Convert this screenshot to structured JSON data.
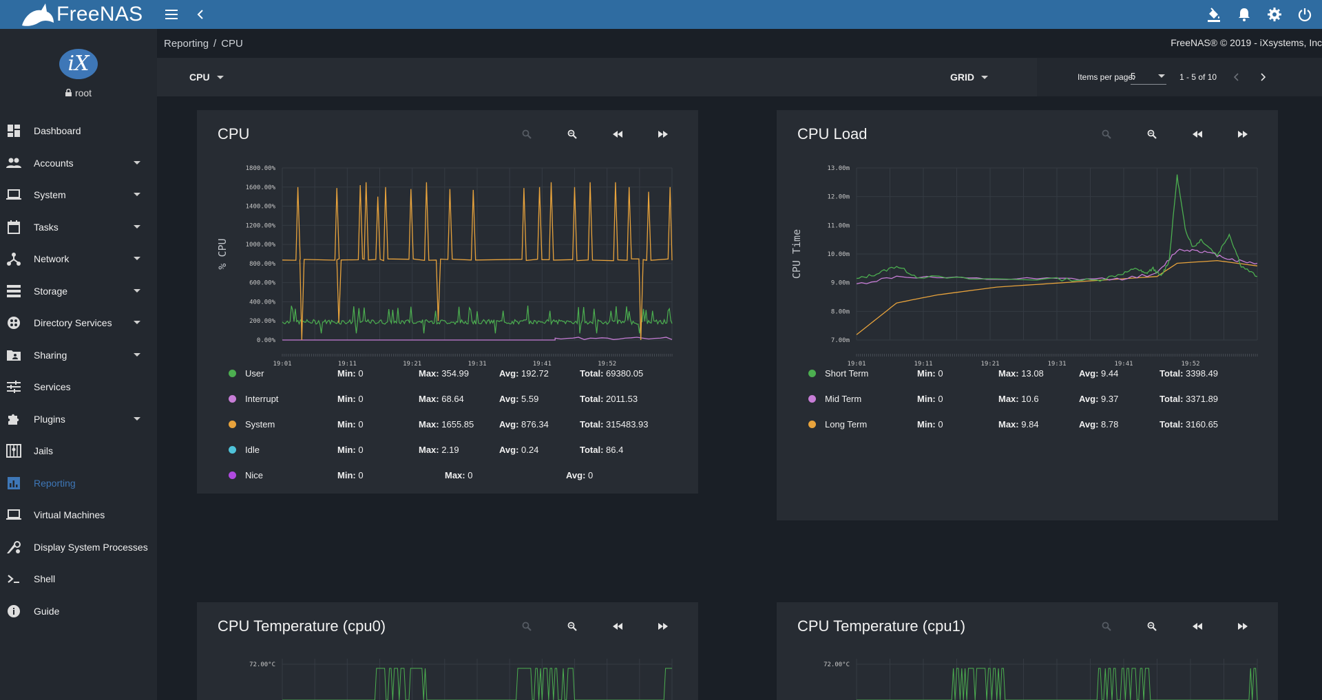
{
  "app": {
    "brand": "FreeNAS"
  },
  "colors": {
    "topbar": "#2f6ca1",
    "accent": "#3e77b7",
    "green": "#4caf50",
    "violet": "#c77dd6",
    "orange": "#e8a33c",
    "cyan": "#4fc3d9",
    "purple": "#b04ae0"
  },
  "topbar": {
    "icons": [
      "menu-icon",
      "chevron-left-icon",
      "paint-bucket-icon",
      "bell-icon",
      "gear-icon",
      "power-icon"
    ]
  },
  "sidebar": {
    "logo_text": "iX",
    "user": "root",
    "items": [
      {
        "label": "Dashboard",
        "icon": "dashboard-icon",
        "caret": false
      },
      {
        "label": "Accounts",
        "icon": "people-icon",
        "caret": true
      },
      {
        "label": "System",
        "icon": "laptop-icon",
        "caret": true
      },
      {
        "label": "Tasks",
        "icon": "calendar-icon",
        "caret": true
      },
      {
        "label": "Network",
        "icon": "network-icon",
        "caret": true
      },
      {
        "label": "Storage",
        "icon": "storage-icon",
        "caret": true
      },
      {
        "label": "Directory Services",
        "icon": "directory-icon",
        "caret": true
      },
      {
        "label": "Sharing",
        "icon": "folder-share-icon",
        "caret": true
      },
      {
        "label": "Services",
        "icon": "tune-icon",
        "caret": false
      },
      {
        "label": "Plugins",
        "icon": "puzzle-icon",
        "caret": true
      },
      {
        "label": "Jails",
        "icon": "jail-icon",
        "caret": false
      },
      {
        "label": "Reporting",
        "icon": "chart-icon",
        "caret": false,
        "active": true
      },
      {
        "label": "Virtual Machines",
        "icon": "laptop-icon",
        "caret": false
      },
      {
        "label": "Display System Processes",
        "icon": "processes-icon",
        "caret": false
      },
      {
        "label": "Shell",
        "icon": "terminal-icon",
        "caret": false
      },
      {
        "label": "Guide",
        "icon": "info-icon",
        "caret": false
      }
    ]
  },
  "breadcrumb": {
    "parent": "Reporting",
    "sep": "/",
    "current": "CPU"
  },
  "copyright": "FreeNAS® © 2019 - iXsystems, Inc",
  "toolbar": {
    "category": "CPU",
    "layout": "GRID",
    "items_per_page_label": "Items per page:",
    "items_per_page": "5",
    "range": "1 - 5 of 10"
  },
  "cards": {
    "cpu": {
      "title": "CPU",
      "legend": [
        {
          "name": "User",
          "color": "#4caf50",
          "min": "0",
          "max": "354.99",
          "avg": "192.72",
          "total": "69380.05"
        },
        {
          "name": "Interrupt",
          "color": "#c77dd6",
          "min": "0",
          "max": "68.64",
          "avg": "5.59",
          "total": "2011.53"
        },
        {
          "name": "System",
          "color": "#e8a33c",
          "min": "0",
          "max": "1655.85",
          "avg": "876.34",
          "total": "315483.93"
        },
        {
          "name": "Idle",
          "color": "#4fc3d9",
          "min": "0",
          "max": "2.19",
          "avg": "0.24",
          "total": "86.4"
        },
        {
          "name": "Nice",
          "color": "#b04ae0",
          "min": "0",
          "max": "0",
          "avg": "0",
          "total": ""
        }
      ]
    },
    "cpu_load": {
      "title": "CPU Load",
      "legend": [
        {
          "name": "Short Term",
          "color": "#4caf50",
          "min": "0",
          "max": "13.08",
          "avg": "9.44",
          "total": "3398.49"
        },
        {
          "name": "Mid Term",
          "color": "#c77dd6",
          "min": "0",
          "max": "10.6",
          "avg": "9.37",
          "total": "3371.89"
        },
        {
          "name": "Long Term",
          "color": "#e8a33c",
          "min": "0",
          "max": "9.84",
          "avg": "8.78",
          "total": "3160.65"
        }
      ]
    },
    "temp0": {
      "title": "CPU Temperature (cpu0)"
    },
    "temp1": {
      "title": "CPU Temperature (cpu1)"
    }
  },
  "labels": {
    "min": "Min:",
    "max": "Max:",
    "avg": "Avg:",
    "total": "Total:"
  },
  "chart_data": [
    {
      "type": "line",
      "title": "CPU",
      "ylabel": "% CPU",
      "x_ticks": [
        "19:01",
        "19:11",
        "19:21",
        "19:31",
        "19:41",
        "19:52"
      ],
      "y_ticks": [
        "0.00%",
        "200.00%",
        "400.00%",
        "600.00%",
        "800.00%",
        "1000.00%",
        "1200.00%",
        "1400.00%",
        "1600.00%",
        "1800.00%"
      ],
      "ylim": [
        0,
        1800
      ],
      "series": [
        {
          "name": "System",
          "color": "#e8a33c",
          "baseline": 840,
          "spikes": [
            {
              "x": 0.04,
              "y": 1600
            },
            {
              "x": 0.05,
              "y": 0
            },
            {
              "x": 0.14,
              "y": 1590
            },
            {
              "x": 0.145,
              "y": 180
            },
            {
              "x": 0.2,
              "y": 1620
            },
            {
              "x": 0.215,
              "y": 1650
            },
            {
              "x": 0.245,
              "y": 1500
            },
            {
              "x": 0.265,
              "y": 1600
            },
            {
              "x": 0.33,
              "y": 1580
            },
            {
              "x": 0.37,
              "y": 1650
            },
            {
              "x": 0.4,
              "y": 200
            },
            {
              "x": 0.43,
              "y": 1580
            },
            {
              "x": 0.49,
              "y": 1570
            },
            {
              "x": 0.62,
              "y": 1590
            },
            {
              "x": 0.66,
              "y": 1600
            },
            {
              "x": 0.69,
              "y": 1650
            },
            {
              "x": 0.75,
              "y": 1600
            },
            {
              "x": 0.79,
              "y": 1650
            },
            {
              "x": 0.855,
              "y": 1650
            },
            {
              "x": 0.89,
              "y": 1600
            },
            {
              "x": 0.92,
              "y": 0
            },
            {
              "x": 0.94,
              "y": 1550
            },
            {
              "x": 0.995,
              "y": 1600
            }
          ]
        },
        {
          "name": "User",
          "color": "#4caf50",
          "baseline": 190
        },
        {
          "name": "Interrupt",
          "color": "#c77dd6",
          "baseline": 0
        }
      ]
    },
    {
      "type": "line",
      "title": "CPU Load",
      "ylabel": "CPU Time",
      "x_ticks": [
        "19:01",
        "19:11",
        "19:21",
        "19:31",
        "19:41",
        "19:52"
      ],
      "y_ticks": [
        "7.00m",
        "8.00m",
        "9.00m",
        "10.00m",
        "11.00m",
        "12.00m",
        "13.00m"
      ],
      "ylim": [
        6.8,
        13.3
      ],
      "series": [
        {
          "name": "Short Term",
          "color": "#4caf50",
          "points": [
            [
              0,
              9.1
            ],
            [
              0.05,
              9.3
            ],
            [
              0.1,
              9.6
            ],
            [
              0.15,
              9.2
            ],
            [
              0.3,
              9.1
            ],
            [
              0.5,
              9.1
            ],
            [
              0.6,
              9.05
            ],
            [
              0.66,
              9.3
            ],
            [
              0.7,
              9.5
            ],
            [
              0.72,
              9.3
            ],
            [
              0.74,
              9.5
            ],
            [
              0.76,
              9.2
            ],
            [
              0.78,
              9.8
            ],
            [
              0.8,
              13.0
            ],
            [
              0.82,
              11.0
            ],
            [
              0.84,
              10.3
            ],
            [
              0.86,
              10.6
            ],
            [
              0.9,
              10.0
            ],
            [
              0.93,
              10.8
            ],
            [
              0.96,
              9.6
            ],
            [
              1.0,
              9.2
            ]
          ]
        },
        {
          "name": "Mid Term",
          "color": "#c77dd6",
          "points": [
            [
              0,
              8.9
            ],
            [
              0.1,
              9.2
            ],
            [
              0.3,
              9.1
            ],
            [
              0.5,
              9.1
            ],
            [
              0.65,
              9.1
            ],
            [
              0.75,
              9.3
            ],
            [
              0.8,
              10.2
            ],
            [
              0.85,
              10.2
            ],
            [
              0.9,
              10.0
            ],
            [
              0.95,
              9.8
            ],
            [
              1.0,
              9.7
            ]
          ]
        },
        {
          "name": "Long Term",
          "color": "#e8a33c",
          "points": [
            [
              0,
              7.0
            ],
            [
              0.1,
              8.2
            ],
            [
              0.2,
              8.5
            ],
            [
              0.35,
              8.8
            ],
            [
              0.5,
              8.95
            ],
            [
              0.65,
              9.1
            ],
            [
              0.75,
              9.2
            ],
            [
              0.8,
              9.7
            ],
            [
              0.9,
              9.8
            ],
            [
              1.0,
              9.6
            ]
          ]
        }
      ]
    },
    {
      "type": "line",
      "title": "CPU Temperature (cpu0)",
      "y_ticks": [
        "72.00°C"
      ],
      "series": [
        {
          "name": "",
          "color": "#4caf50"
        }
      ]
    },
    {
      "type": "line",
      "title": "CPU Temperature (cpu1)",
      "y_ticks": [
        "72.00°C"
      ],
      "series": [
        {
          "name": "",
          "color": "#4caf50"
        }
      ]
    }
  ]
}
